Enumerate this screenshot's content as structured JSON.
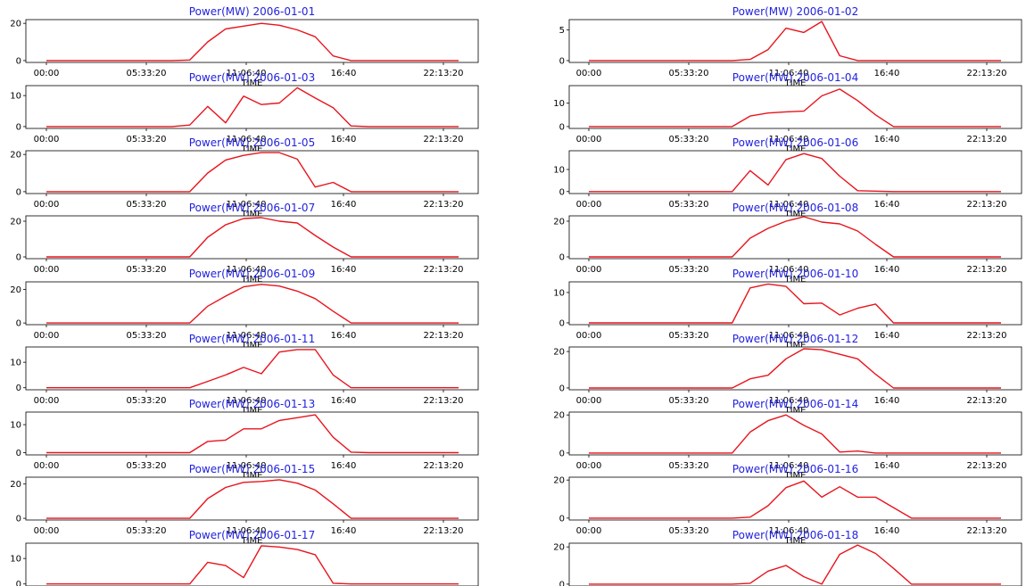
{
  "style": {
    "line_color": "#e8141c",
    "title_color": "#2222dd"
  },
  "chart_data": [
    {
      "type": "line",
      "title": "Power(MW) 2006-01-01",
      "xlabel": "TIME",
      "x_ticks": [
        "00:00",
        "05:33:20",
        "11:06:40",
        "16:40",
        "22:13:20"
      ],
      "y_ticks": [
        0,
        20
      ],
      "ylim": [
        -1,
        22
      ],
      "values": [
        0,
        0,
        0,
        0,
        0,
        0,
        0,
        0,
        0.3,
        10,
        17,
        18.5,
        20,
        19,
        16.5,
        12.8,
        2.5,
        0,
        0,
        0,
        0,
        0,
        0,
        0
      ]
    },
    {
      "type": "line",
      "title": "Power(MW) 2006-01-02",
      "xlabel": "TIME",
      "x_ticks": [
        "00:00",
        "05:33:20",
        "11:06:40",
        "16:40",
        "22:13:20"
      ],
      "y_ticks": [
        0,
        5
      ],
      "ylim": [
        -0.3,
        6.7
      ],
      "values": [
        0,
        0,
        0,
        0,
        0,
        0,
        0,
        0,
        0,
        0.2,
        1.8,
        5.3,
        4.6,
        6.4,
        0.8,
        0,
        0,
        0,
        0,
        0,
        0,
        0,
        0,
        0
      ]
    },
    {
      "type": "line",
      "title": "Power(MW) 2006-01-03",
      "xlabel": "TIME",
      "x_ticks": [
        "00:00",
        "05:33:20",
        "11:06:40",
        "16:40",
        "22:13:20"
      ],
      "y_ticks": [
        0,
        10
      ],
      "ylim": [
        -0.6,
        13.2
      ],
      "values": [
        0,
        0,
        0,
        0,
        0,
        0,
        0,
        0,
        0.5,
        6.5,
        1.2,
        9.8,
        7.1,
        7.6,
        12.5,
        9.2,
        6.1,
        0.2,
        0,
        0,
        0,
        0,
        0,
        0
      ]
    },
    {
      "type": "line",
      "title": "Power(MW) 2006-01-04",
      "xlabel": "TIME",
      "x_ticks": [
        "00:00",
        "05:33:20",
        "11:06:40",
        "16:40",
        "22:13:20"
      ],
      "y_ticks": [
        0,
        10
      ],
      "ylim": [
        -0.8,
        17.5
      ],
      "values": [
        0,
        0,
        0,
        0,
        0,
        0,
        0,
        0,
        0,
        4.5,
        5.8,
        6.3,
        6.6,
        13.1,
        16,
        11.1,
        5,
        0,
        0,
        0,
        0,
        0,
        0,
        0
      ]
    },
    {
      "type": "line",
      "title": "Power(MW) 2006-01-05",
      "xlabel": "TIME",
      "x_ticks": [
        "00:00",
        "05:33:20",
        "11:06:40",
        "16:40",
        "22:13:20"
      ],
      "y_ticks": [
        0,
        20
      ],
      "ylim": [
        -1,
        22
      ],
      "values": [
        0,
        0,
        0,
        0,
        0,
        0,
        0,
        0,
        0,
        10,
        17,
        19.5,
        21,
        21,
        17.5,
        2.5,
        5,
        0,
        0,
        0,
        0,
        0,
        0,
        0
      ]
    },
    {
      "type": "line",
      "title": "Power(MW) 2006-01-06",
      "xlabel": "TIME",
      "x_ticks": [
        "00:00",
        "05:33:20",
        "11:06:40",
        "16:40",
        "22:13:20"
      ],
      "y_ticks": [
        0,
        10
      ],
      "ylim": [
        -0.9,
        18.5
      ],
      "values": [
        0,
        0,
        0,
        0,
        0,
        0,
        0,
        0,
        0,
        9.5,
        3,
        14.5,
        17.2,
        15,
        7,
        0.4,
        0.2,
        0,
        0,
        0,
        0,
        0,
        0,
        0
      ]
    },
    {
      "type": "line",
      "title": "Power(MW) 2006-01-07",
      "xlabel": "TIME",
      "x_ticks": [
        "00:00",
        "05:33:20",
        "11:06:40",
        "16:40",
        "22:13:20"
      ],
      "y_ticks": [
        0,
        20
      ],
      "ylim": [
        -1,
        23
      ],
      "values": [
        0,
        0,
        0,
        0,
        0,
        0,
        0,
        0,
        0,
        11,
        18,
        21.5,
        22,
        20,
        19,
        12,
        5.5,
        0,
        0,
        0,
        0,
        0,
        0,
        0
      ]
    },
    {
      "type": "line",
      "title": "Power(MW) 2006-01-08",
      "xlabel": "TIME",
      "x_ticks": [
        "00:00",
        "05:33:20",
        "11:06:40",
        "16:40",
        "22:13:20"
      ],
      "y_ticks": [
        0,
        20
      ],
      "ylim": [
        -1,
        23
      ],
      "values": [
        0,
        0,
        0,
        0,
        0,
        0,
        0,
        0,
        0,
        10.5,
        16,
        20,
        22.5,
        19.5,
        18.5,
        14.5,
        7,
        0,
        0,
        0,
        0,
        0,
        0,
        0
      ]
    },
    {
      "type": "line",
      "title": "Power(MW) 2006-01-09",
      "xlabel": "TIME",
      "x_ticks": [
        "00:00",
        "05:33:20",
        "11:06:40",
        "16:40",
        "22:13:20"
      ],
      "y_ticks": [
        0,
        20
      ],
      "ylim": [
        -1,
        24.5
      ],
      "values": [
        0,
        0,
        0,
        0,
        0,
        0,
        0,
        0,
        0,
        10,
        16,
        21.5,
        23,
        22,
        19,
        14.5,
        7,
        0,
        0,
        0,
        0,
        0,
        0,
        0
      ]
    },
    {
      "type": "line",
      "title": "Power(MW) 2006-01-10",
      "xlabel": "TIME",
      "x_ticks": [
        "00:00",
        "05:33:20",
        "11:06:40",
        "16:40",
        "22:13:20"
      ],
      "y_ticks": [
        0,
        10
      ],
      "ylim": [
        -0.6,
        13.5
      ],
      "values": [
        0,
        0,
        0,
        0,
        0,
        0,
        0,
        0,
        0,
        11.5,
        12.8,
        12,
        6.3,
        6.5,
        2.6,
        4.8,
        6.2,
        0,
        0,
        0,
        0,
        0,
        0,
        0
      ]
    },
    {
      "type": "line",
      "title": "Power(MW) 2006-01-11",
      "xlabel": "TIME",
      "x_ticks": [
        "00:00",
        "05:33:20",
        "11:06:40",
        "16:40",
        "22:13:20"
      ],
      "y_ticks": [
        0,
        10
      ],
      "ylim": [
        -0.8,
        16
      ],
      "values": [
        0,
        0,
        0,
        0,
        0,
        0,
        0,
        0,
        0,
        2.5,
        5,
        8,
        5.5,
        14,
        15,
        15,
        5,
        0,
        0,
        0,
        0,
        0,
        0,
        0
      ]
    },
    {
      "type": "line",
      "title": "Power(MW) 2006-01-12",
      "xlabel": "TIME",
      "x_ticks": [
        "00:00",
        "05:33:20",
        "11:06:40",
        "16:40",
        "22:13:20"
      ],
      "y_ticks": [
        0,
        20
      ],
      "ylim": [
        -1,
        22.5
      ],
      "values": [
        0,
        0,
        0,
        0,
        0,
        0,
        0,
        0,
        0,
        5,
        7,
        16,
        21.5,
        21,
        18.5,
        16,
        7.5,
        0,
        0,
        0,
        0,
        0,
        0,
        0
      ]
    },
    {
      "type": "line",
      "title": "Power(MW) 2006-01-13",
      "xlabel": "TIME",
      "x_ticks": [
        "00:00",
        "05:33:20",
        "11:06:40",
        "16:40",
        "22:13:20"
      ],
      "y_ticks": [
        0,
        10
      ],
      "ylim": [
        -0.8,
        14.5
      ],
      "values": [
        0,
        0,
        0,
        0,
        0,
        0,
        0,
        0,
        0,
        4,
        4.5,
        8.5,
        8.5,
        11.5,
        12.5,
        13.5,
        5.5,
        0.2,
        0,
        0,
        0,
        0,
        0,
        0
      ]
    },
    {
      "type": "line",
      "title": "Power(MW) 2006-01-14",
      "xlabel": "TIME",
      "x_ticks": [
        "00:00",
        "05:33:20",
        "11:06:40",
        "16:40",
        "22:13:20"
      ],
      "y_ticks": [
        0,
        20
      ],
      "ylim": [
        -1,
        21.5
      ],
      "values": [
        0,
        0,
        0,
        0,
        0,
        0,
        0,
        0,
        0,
        11,
        17,
        20,
        14.5,
        10,
        0.5,
        1,
        0,
        0,
        0,
        0,
        0,
        0,
        0,
        0
      ]
    },
    {
      "type": "line",
      "title": "Power(MW) 2006-01-15",
      "xlabel": "TIME",
      "x_ticks": [
        "00:00",
        "05:33:20",
        "11:06:40",
        "16:40",
        "22:13:20"
      ],
      "y_ticks": [
        0,
        20
      ],
      "ylim": [
        -1,
        24
      ],
      "values": [
        0,
        0,
        0,
        0,
        0,
        0,
        0,
        0,
        0,
        11.5,
        18,
        21,
        21.5,
        22.5,
        20.5,
        16.5,
        8.5,
        0,
        0,
        0,
        0,
        0,
        0,
        0
      ]
    },
    {
      "type": "line",
      "title": "Power(MW) 2006-01-16",
      "xlabel": "TIME",
      "x_ticks": [
        "00:00",
        "05:33:20",
        "11:06:40",
        "16:40",
        "22:13:20"
      ],
      "y_ticks": [
        0,
        20
      ],
      "ylim": [
        -1,
        21.5
      ],
      "values": [
        0,
        0,
        0,
        0,
        0,
        0,
        0,
        0,
        0,
        0.5,
        6.5,
        16,
        19.5,
        11,
        16.5,
        11,
        11,
        5.5,
        0,
        0,
        0,
        0,
        0,
        0
      ]
    },
    {
      "type": "line",
      "title": "Power(MW) 2006-01-17",
      "xlabel": "TIME",
      "x_ticks": [
        "00:00",
        "05:33:20",
        "11:06:40",
        "16:40",
        "22:13:20"
      ],
      "y_ticks": [
        0,
        10
      ],
      "ylim": [
        -0.8,
        16
      ],
      "values": [
        0,
        0,
        0,
        0,
        0,
        0,
        0,
        0,
        0,
        8.5,
        7.2,
        2.5,
        15,
        14.5,
        13.5,
        11.5,
        0.3,
        0,
        0,
        0,
        0,
        0,
        0,
        0
      ]
    },
    {
      "type": "line",
      "title": "Power(MW) 2006-01-18",
      "xlabel": "TIME",
      "x_ticks": [
        "00:00",
        "05:33:20",
        "11:06:40",
        "16:40",
        "22:13:20"
      ],
      "y_ticks": [
        0,
        20
      ],
      "ylim": [
        -1,
        22
      ],
      "values": [
        0,
        0,
        0,
        0,
        0,
        0,
        0,
        0,
        0,
        0.5,
        7,
        10,
        4,
        0,
        16,
        21,
        16.5,
        8.5,
        0,
        0,
        0,
        0,
        0,
        0
      ]
    }
  ]
}
